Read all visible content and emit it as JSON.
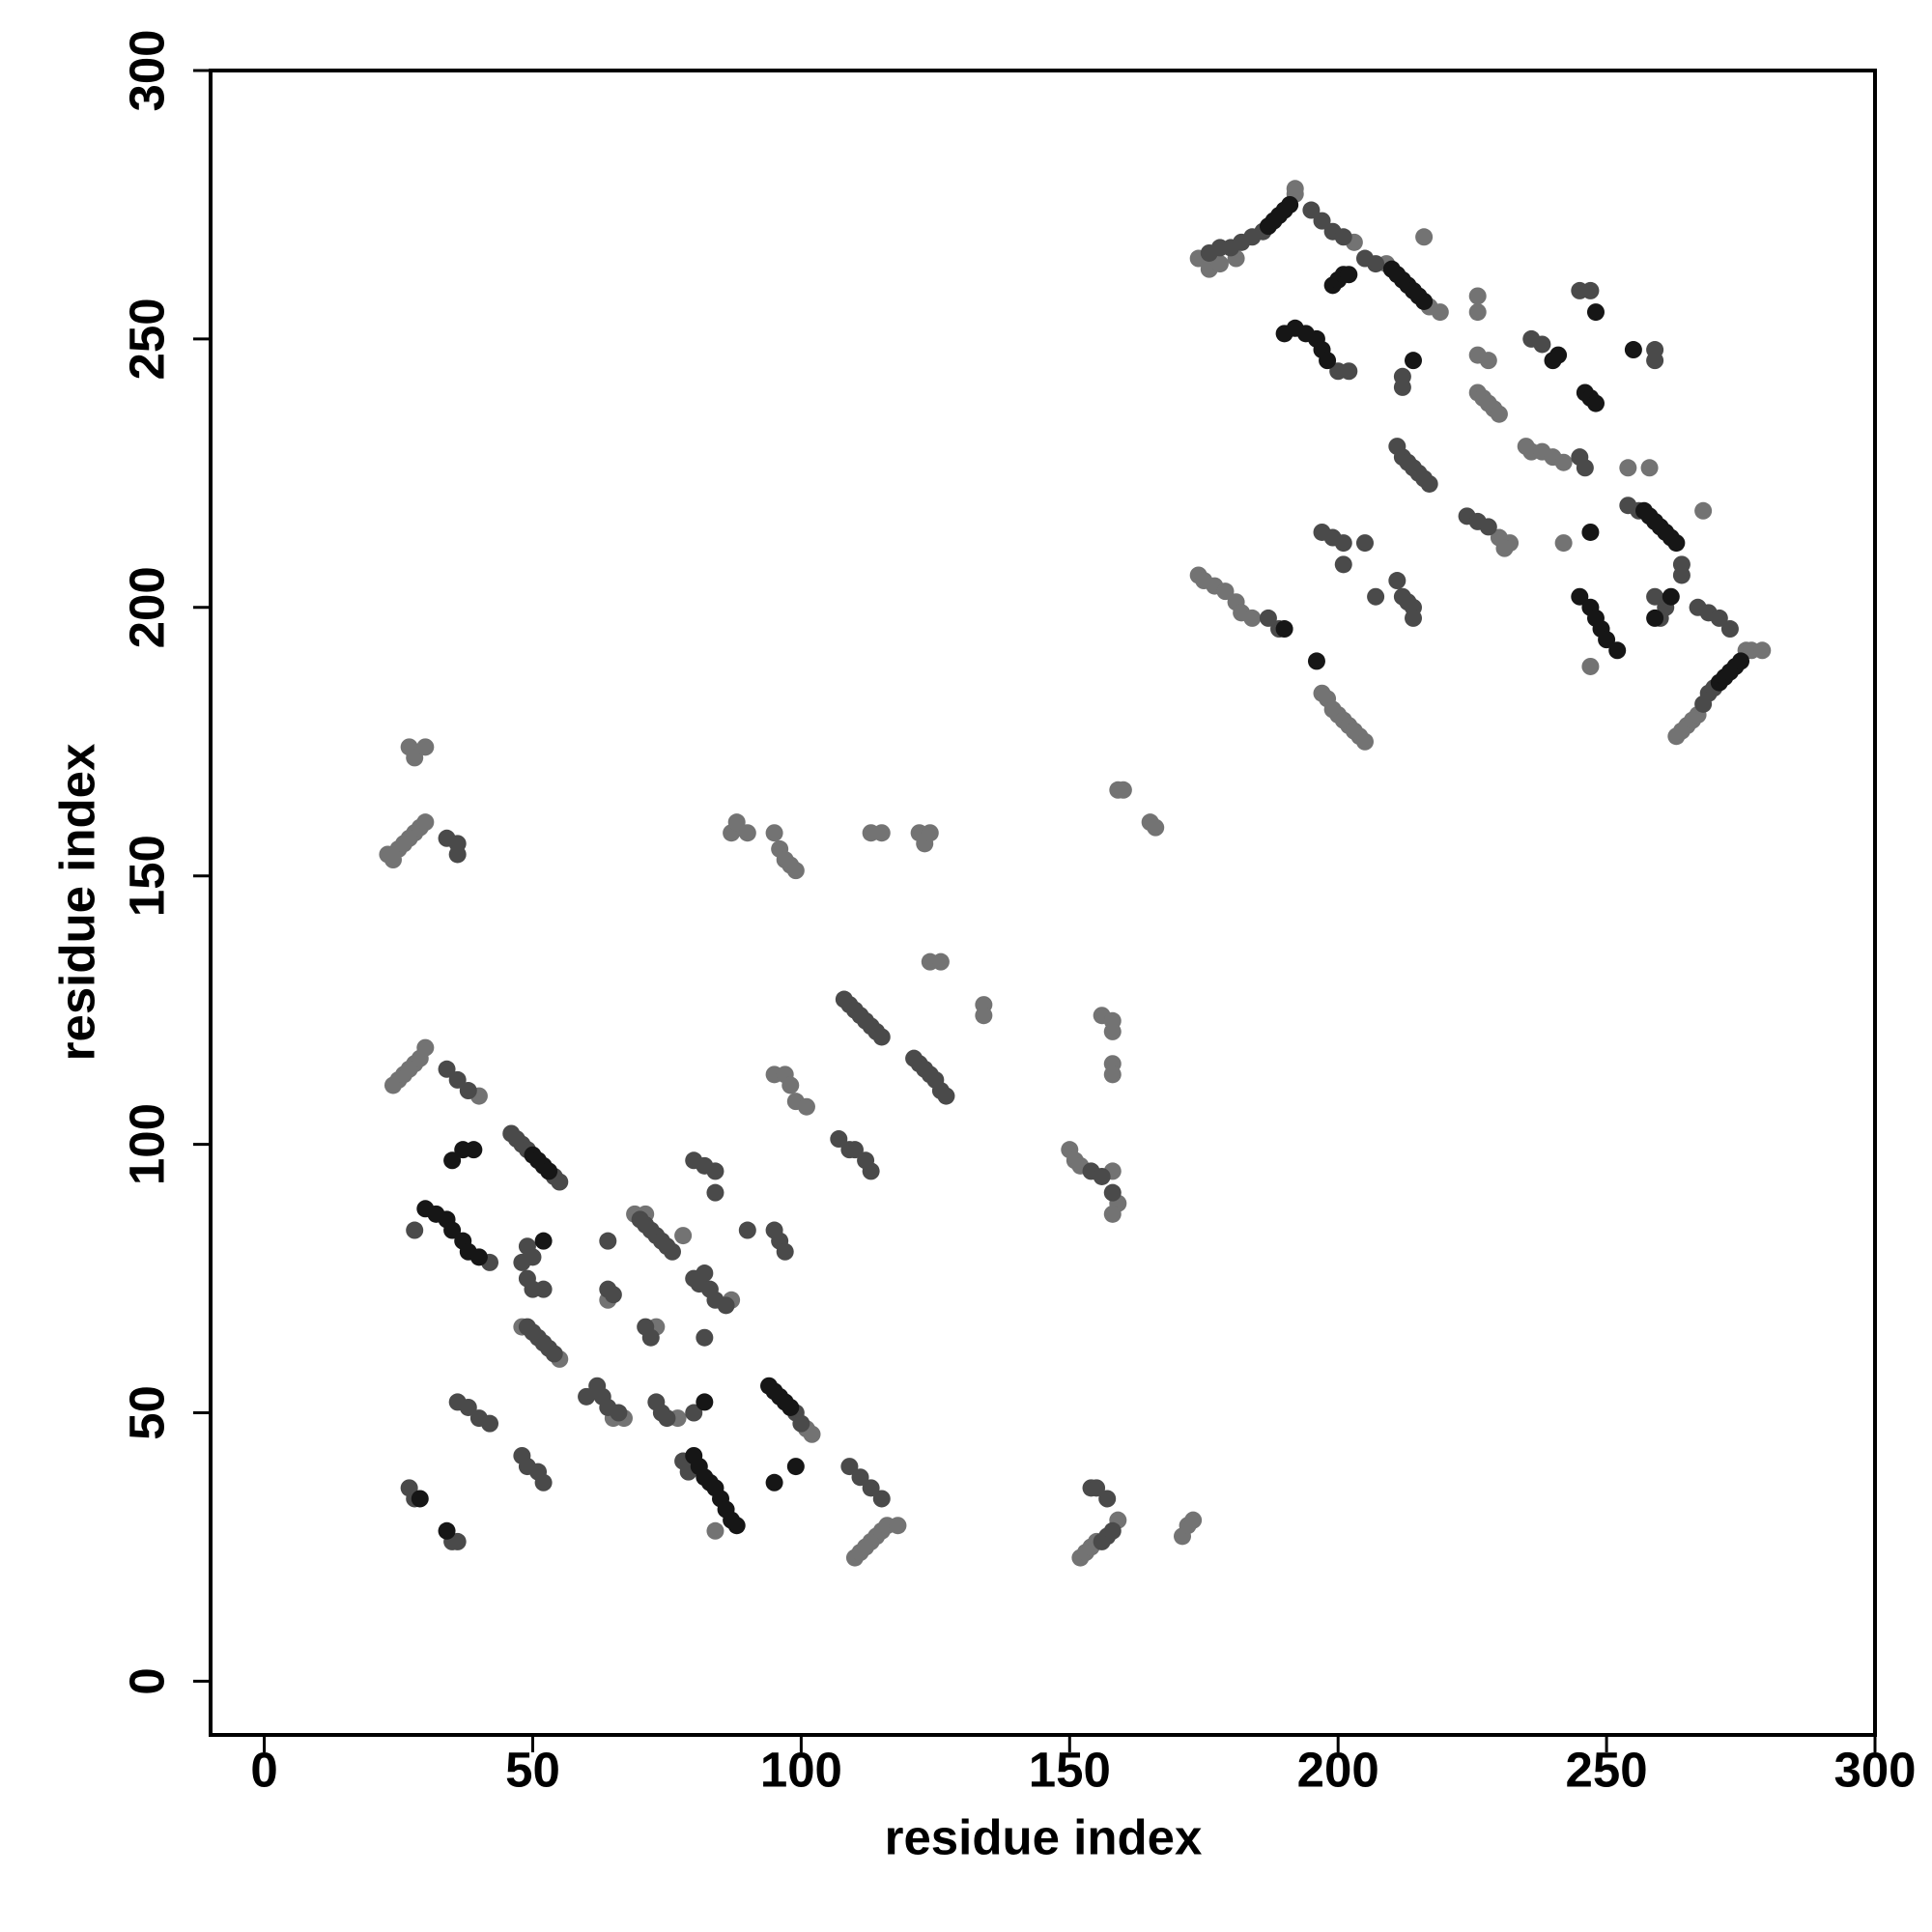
{
  "chart_data": {
    "type": "scatter",
    "x_label": "residue index",
    "y_label": "residue index",
    "xlim": [
      -10,
      300
    ],
    "ylim": [
      -10,
      300
    ],
    "xticks": [
      0,
      50,
      100,
      150,
      200,
      250,
      300
    ],
    "yticks": [
      0,
      50,
      100,
      150,
      200,
      250,
      300
    ],
    "grid": false,
    "series": [
      {
        "color": "#737373",
        "x": [
          174,
          176,
          178,
          181,
          192,
          192,
          203,
          209,
          219,
          217,
          216,
          226,
          226,
          226,
          228,
          226,
          227,
          228,
          229,
          230,
          235,
          236,
          238,
          240,
          242,
          254,
          258,
          230,
          232,
          231,
          268,
          242,
          174,
          175,
          177,
          179,
          181,
          182,
          184,
          247,
          197,
          198,
          199,
          200,
          201,
          202,
          203,
          204,
          205,
          263,
          264,
          265,
          266,
          267,
          276,
          277,
          279,
          27,
          28,
          30,
          23,
          24,
          25,
          26,
          27,
          28,
          29,
          30,
          87,
          88,
          90,
          95,
          96,
          97,
          98,
          99,
          113,
          115,
          122,
          123,
          124,
          159,
          160,
          165,
          166,
          124,
          126,
          134,
          134,
          156,
          158,
          158,
          158,
          158,
          95,
          97,
          98,
          99,
          101,
          24,
          25,
          26,
          27,
          28,
          29,
          30,
          40,
          150,
          151,
          152,
          158,
          159,
          158,
          69,
          71,
          78,
          87,
          64,
          73,
          48,
          55,
          65,
          67,
          77,
          101,
          102,
          84,
          110,
          111,
          112,
          113,
          114,
          115,
          116,
          118,
          152,
          153,
          154,
          155,
          159,
          171,
          172,
          173
        ],
        "values": [
          265,
          263,
          264,
          265,
          277,
          278,
          268,
          264,
          255,
          256,
          269,
          258,
          255,
          247,
          246,
          240,
          239,
          238,
          237,
          236,
          230,
          229,
          229,
          228,
          227,
          226,
          226,
          213,
          212,
          211,
          218,
          212,
          206,
          205,
          204,
          203,
          201,
          199,
          198,
          189,
          184,
          183,
          181,
          180,
          179,
          178,
          177,
          176,
          175,
          176,
          177,
          178,
          179,
          180,
          192,
          192,
          192,
          174,
          172,
          174,
          154,
          153,
          155,
          156,
          157,
          158,
          159,
          160,
          158,
          160,
          158,
          158,
          155,
          153,
          152,
          151,
          158,
          158,
          158,
          156,
          158,
          166,
          166,
          160,
          159,
          134,
          134,
          126,
          124,
          124,
          123,
          121,
          115,
          113,
          113,
          113,
          111,
          108,
          107,
          111,
          112,
          113,
          114,
          115,
          116,
          118,
          109,
          99,
          97,
          96,
          95,
          89,
          87,
          87,
          87,
          83,
          71,
          71,
          66,
          66,
          60,
          49,
          49,
          49,
          47,
          46,
          28,
          23,
          24,
          25,
          26,
          27,
          28,
          29,
          29,
          23,
          24,
          25,
          26,
          30,
          27,
          29,
          30
        ]
      },
      {
        "color": "#4a4a4a",
        "x": [
          176,
          178,
          180,
          182,
          184,
          186,
          195,
          197,
          199,
          201,
          205,
          207,
          200,
          202,
          212,
          212,
          236,
          238,
          245,
          247,
          259,
          259,
          211,
          212,
          213,
          214,
          215,
          216,
          217,
          245,
          246,
          224,
          226,
          228,
          254,
          256,
          264,
          264,
          197,
          199,
          201,
          201,
          205,
          211,
          212,
          213,
          214,
          214,
          207,
          187,
          189,
          259,
          260,
          261,
          267,
          269,
          271,
          273,
          268,
          269,
          270,
          34,
          36,
          36,
          108,
          109,
          110,
          111,
          112,
          113,
          114,
          115,
          121,
          122,
          123,
          124,
          125,
          126,
          127,
          34,
          36,
          38,
          107,
          109,
          110,
          112,
          113,
          154,
          156,
          158,
          46,
          47,
          48,
          49,
          54,
          55,
          28,
          42,
          49,
          50,
          48,
          49,
          50,
          52,
          64,
          70,
          71,
          72,
          73,
          74,
          75,
          76,
          80,
          82,
          84,
          84,
          90,
          95,
          96,
          97,
          64,
          65,
          80,
          81,
          82,
          83,
          84,
          86,
          71,
          72,
          82,
          49,
          50,
          51,
          52,
          53,
          54,
          60,
          62,
          63,
          64,
          66,
          73,
          74,
          75,
          80,
          99,
          100,
          36,
          38,
          40,
          42,
          48,
          49,
          51,
          52,
          78,
          79,
          109,
          111,
          113,
          115,
          27,
          28,
          35,
          36,
          154,
          155,
          157,
          156,
          157,
          158
        ],
        "values": [
          266,
          267,
          267,
          268,
          269,
          270,
          274,
          272,
          270,
          269,
          265,
          264,
          244,
          244,
          243,
          241,
          250,
          249,
          259,
          259,
          248,
          246,
          230,
          228,
          227,
          226,
          225,
          224,
          223,
          228,
          226,
          217,
          216,
          215,
          219,
          218,
          208,
          206,
          214,
          213,
          212,
          208,
          212,
          205,
          202,
          201,
          200,
          198,
          202,
          198,
          196,
          202,
          198,
          200,
          200,
          199,
          198,
          196,
          182,
          184,
          185,
          157,
          156,
          154,
          127,
          126,
          125,
          124,
          123,
          122,
          121,
          120,
          116,
          115,
          114,
          113,
          112,
          110,
          109,
          114,
          112,
          110,
          101,
          99,
          99,
          97,
          95,
          95,
          94,
          91,
          102,
          101,
          100,
          99,
          94,
          93,
          84,
          78,
          81,
          79,
          78,
          75,
          73,
          73,
          82,
          86,
          85,
          84,
          83,
          82,
          81,
          80,
          97,
          96,
          95,
          91,
          84,
          84,
          82,
          80,
          73,
          72,
          75,
          74,
          76,
          73,
          71,
          70,
          66,
          64,
          64,
          66,
          65,
          64,
          63,
          62,
          61,
          53,
          55,
          53,
          51,
          50,
          52,
          50,
          49,
          50,
          50,
          48,
          52,
          51,
          49,
          48,
          42,
          40,
          39,
          37,
          41,
          39,
          40,
          38,
          36,
          34,
          36,
          34,
          26,
          26,
          36,
          36,
          34,
          26,
          27,
          28
        ]
      },
      {
        "color": "#161616",
        "x": [
          187,
          188,
          189,
          190,
          191,
          199,
          200,
          201,
          202,
          210,
          211,
          212,
          213,
          214,
          215,
          216,
          190,
          192,
          194,
          196,
          197,
          198,
          214,
          248,
          255,
          241,
          240,
          246,
          247,
          248,
          257,
          258,
          259,
          260,
          261,
          262,
          263,
          247,
          190,
          196,
          245,
          247,
          248,
          249,
          250,
          252,
          271,
          272,
          273,
          274,
          275,
          35,
          37,
          39,
          30,
          32,
          34,
          35,
          37,
          38,
          40,
          52,
          50,
          51,
          52,
          53,
          82,
          94,
          95,
          96,
          97,
          98,
          80,
          81,
          82,
          83,
          84,
          85,
          86,
          87,
          88,
          95,
          99,
          29,
          34,
          262,
          259
        ],
        "values": [
          271,
          272,
          273,
          274,
          275,
          260,
          261,
          262,
          262,
          263,
          262,
          261,
          260,
          259,
          258,
          257,
          251,
          252,
          251,
          250,
          248,
          246,
          246,
          255,
          248,
          247,
          246,
          240,
          239,
          238,
          218,
          217,
          216,
          215,
          214,
          213,
          212,
          214,
          196,
          190,
          202,
          200,
          198,
          196,
          194,
          192,
          186,
          187,
          188,
          189,
          190,
          97,
          99,
          99,
          88,
          87,
          86,
          84,
          82,
          80,
          79,
          82,
          98,
          97,
          96,
          95,
          52,
          55,
          54,
          53,
          52,
          51,
          42,
          40,
          38,
          37,
          36,
          34,
          32,
          30,
          29,
          37,
          40,
          34,
          28,
          202,
          198
        ]
      }
    ]
  }
}
